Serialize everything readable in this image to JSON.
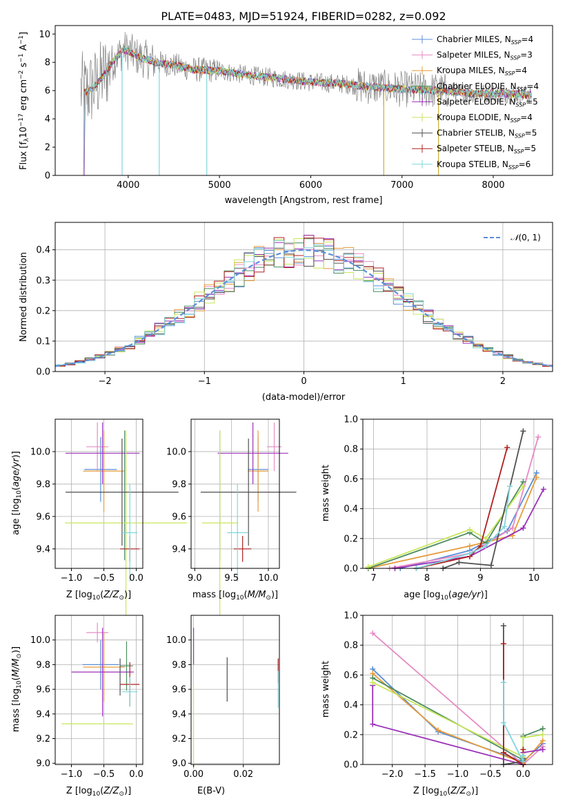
{
  "chart_data": [
    {
      "type": "line",
      "title": "PLATE=0483, MJD=51924, FIBERID=0282, z=0.092",
      "xlabel": "wavelength [Angstrom, rest frame]",
      "ylabel": "Flux [f_λ10^{-17} erg cm^{-2} s^{-1} A^{-1}]",
      "xlim": [
        3200,
        8650
      ],
      "ylim": [
        0,
        10.6
      ],
      "xticks": [
        4000,
        5000,
        6000,
        7000,
        8000
      ],
      "yticks": [
        0,
        2,
        4,
        6,
        8,
        10
      ],
      "grid": false,
      "legend_position": "top-right",
      "series": [
        {
          "name": "Chabrier MILES, N_SSP=4",
          "color": "#5b8ed8"
        },
        {
          "name": "Salpeter MILES, N_SSP=3",
          "color": "#e78ac3"
        },
        {
          "name": "Kroupa MILES, N_SSP=4",
          "color": "#e69b3a"
        },
        {
          "name": "Chabrier ELODIE, N_SSP=4",
          "color": "#4c8c5e"
        },
        {
          "name": "Salpeter ELODIE, N_SSP=5",
          "color": "#9b30b8"
        },
        {
          "name": "Kroupa ELODIE, N_SSP=4",
          "color": "#c8e65a"
        },
        {
          "name": "Chabrier STELIB, N_SSP=5",
          "color": "#505050"
        },
        {
          "name": "Salpeter STELIB, N_SSP=5",
          "color": "#b01f1f"
        },
        {
          "name": "Kroupa STELIB, N_SSP=6",
          "color": "#7fd6dc"
        }
      ],
      "continuum": {
        "x": [
          3500,
          3550,
          3650,
          3750,
          3850,
          3950,
          4000,
          4100,
          4200,
          4300,
          4500,
          4700,
          5000,
          5300,
          5600,
          6000,
          6300,
          6600,
          7000,
          7400,
          7800,
          8100,
          8400
        ],
        "y": [
          6.0,
          5.9,
          6.4,
          7.3,
          8.2,
          8.9,
          8.8,
          8.4,
          8.2,
          8.0,
          7.8,
          7.5,
          7.4,
          7.1,
          6.9,
          6.6,
          6.5,
          6.3,
          6.1,
          6.0,
          5.8,
          5.8,
          5.7
        ]
      },
      "absorption_lines": [
        3933,
        4340,
        4861,
        6800,
        7400
      ]
    },
    {
      "type": "bar",
      "title": "",
      "xlabel": "(data-model)/error",
      "ylabel": "Normed distribution",
      "xlim": [
        -2.5,
        2.5
      ],
      "ylim": [
        0,
        0.49
      ],
      "xticks": [
        -2,
        -1,
        0,
        1,
        2
      ],
      "yticks": [
        0.0,
        0.1,
        0.2,
        0.3,
        0.4
      ],
      "grid": true,
      "legend_position": "top-right",
      "legend": "N(0,1)",
      "curve_color": "#5b8ed8",
      "bin_width": 0.1
    },
    {
      "type": "scatter",
      "xlabel": "Z [log10(Z/Z⊙)]",
      "ylabel": "age  [log10(age/yr)]",
      "xlim": [
        -1.25,
        0.1
      ],
      "ylim": [
        9.28,
        10.2
      ],
      "xticks": [
        -1.0,
        -0.5,
        0.0
      ],
      "yticks": [
        9.4,
        9.6,
        9.8,
        10.0
      ],
      "grid": true,
      "points": [
        {
          "series": "Chabrier MILES",
          "x": -0.55,
          "xerr": 0.25,
          "y": 9.89,
          "yerr": 0.2
        },
        {
          "series": "Salpeter MILES",
          "x": -0.6,
          "xerr": 0.17,
          "y": 10.03,
          "yerr": 0.15
        },
        {
          "series": "Kroupa MILES",
          "x": -0.5,
          "xerr": 0.32,
          "y": 9.88,
          "yerr": 0.25
        },
        {
          "series": "Chabrier ELODIE",
          "x": -0.18,
          "xerr": 0.0,
          "y": 9.73,
          "yerr": 0.4
        },
        {
          "series": "Salpeter ELODIE",
          "x": -0.52,
          "xerr": 0.57,
          "y": 9.99,
          "yerr": 0.19
        },
        {
          "series": "Kroupa ELODIE",
          "x": -0.16,
          "xerr": 0.94,
          "y": 9.56,
          "yerr": 0.57
        },
        {
          "series": "Chabrier STELIB",
          "x": -0.22,
          "xerr": 0.87,
          "y": 9.75,
          "yerr": 0.33
        },
        {
          "series": "Salpeter STELIB",
          "x": -0.1,
          "xerr": 0.15,
          "y": 9.4,
          "yerr": 0.08
        },
        {
          "series": "Kroupa STELIB",
          "x": -0.1,
          "xerr": 0.12,
          "y": 9.5,
          "yerr": 0.3
        }
      ]
    },
    {
      "type": "scatter",
      "xlabel": "mass [log10(M/M⊙)]",
      "ylabel": "",
      "xlim": [
        8.95,
        10.15
      ],
      "ylim": [
        9.28,
        10.2
      ],
      "xticks": [
        9.0,
        9.5,
        10.0
      ],
      "yticks": [
        9.4,
        9.6,
        9.8,
        10.0
      ],
      "grid": true,
      "points": [
        {
          "series": "Chabrier MILES",
          "x": 9.86,
          "xerr": 0.14,
          "y": 9.89,
          "yerr": 0.2
        },
        {
          "series": "Salpeter MILES",
          "x": 10.08,
          "xerr": 0.1,
          "y": 10.03,
          "yerr": 0.15
        },
        {
          "series": "Kroupa MILES",
          "x": 9.86,
          "xerr": 0.14,
          "y": 9.88,
          "yerr": 0.25
        },
        {
          "series": "Chabrier ELODIE",
          "x": 9.34,
          "xerr": 0.0,
          "y": 9.73,
          "yerr": 0.4
        },
        {
          "series": "Salpeter ELODIE",
          "x": 9.79,
          "xerr": 0.48,
          "y": 9.99,
          "yerr": 0.19
        },
        {
          "series": "Kroupa ELODIE",
          "x": 9.34,
          "xerr": 0.24,
          "y": 9.56,
          "yerr": 0.57
        },
        {
          "series": "Chabrier STELIB",
          "x": 9.73,
          "xerr": 0.65,
          "y": 9.75,
          "yerr": 0.33
        },
        {
          "series": "Salpeter STELIB",
          "x": 9.65,
          "xerr": 0.12,
          "y": 9.4,
          "yerr": 0.08
        },
        {
          "series": "Kroupa STELIB",
          "x": 9.58,
          "xerr": 0.14,
          "y": 9.5,
          "yerr": 0.3
        }
      ]
    },
    {
      "type": "line",
      "xlabel": "age  [log10(age/yr)]",
      "ylabel": "mass weight",
      "xlim": [
        6.8,
        10.35
      ],
      "ylim": [
        0,
        1.0
      ],
      "xticks": [
        7,
        8,
        9,
        10
      ],
      "yticks": [
        0.0,
        0.2,
        0.4,
        0.6,
        0.8,
        1.0
      ],
      "grid": true,
      "series": [
        {
          "name": "Chabrier MILES",
          "points": [
            [
              7.5,
              0.0
            ],
            [
              8.8,
              0.12
            ],
            [
              9.5,
              0.25
            ],
            [
              10.05,
              0.64
            ]
          ]
        },
        {
          "name": "Salpeter MILES",
          "points": [
            [
              7.3,
              0.0
            ],
            [
              8.8,
              0.1
            ],
            [
              9.6,
              0.27
            ],
            [
              10.08,
              0.88
            ]
          ]
        },
        {
          "name": "Kroupa MILES",
          "points": [
            [
              6.9,
              0.0
            ],
            [
              8.8,
              0.15
            ],
            [
              9.6,
              0.22
            ],
            [
              10.05,
              0.61
            ]
          ]
        },
        {
          "name": "Chabrier ELODIE",
          "points": [
            [
              6.9,
              0.0
            ],
            [
              8.8,
              0.24
            ],
            [
              9.1,
              0.17
            ],
            [
              9.8,
              0.58
            ]
          ]
        },
        {
          "name": "Salpeter ELODIE",
          "points": [
            [
              7.4,
              0.0
            ],
            [
              8.8,
              0.08
            ],
            [
              9.8,
              0.27
            ],
            [
              10.18,
              0.53
            ]
          ]
        },
        {
          "name": "Kroupa ELODIE",
          "points": [
            [
              6.9,
              0.01
            ],
            [
              8.8,
              0.26
            ],
            [
              9.1,
              0.2
            ],
            [
              9.8,
              0.55
            ]
          ]
        },
        {
          "name": "Chabrier STELIB",
          "points": [
            [
              8.3,
              0.0
            ],
            [
              8.6,
              0.04
            ],
            [
              9.2,
              0.02
            ],
            [
              9.8,
              0.92
            ]
          ]
        },
        {
          "name": "Salpeter STELIB",
          "points": [
            [
              7.8,
              0.0
            ],
            [
              8.8,
              0.08
            ],
            [
              9.0,
              0.15
            ],
            [
              9.5,
              0.81
            ]
          ]
        },
        {
          "name": "Kroupa STELIB",
          "points": [
            [
              7.8,
              0.0
            ],
            [
              8.8,
              0.1
            ],
            [
              9.1,
              0.15
            ],
            [
              9.45,
              0.28
            ],
            [
              9.55,
              0.55
            ]
          ]
        }
      ]
    },
    {
      "type": "scatter",
      "xlabel": "Z [log10(Z/Z⊙)]",
      "ylabel": "mass [log10(M/M⊙)]",
      "xlim": [
        -1.25,
        0.1
      ],
      "ylim": [
        8.99,
        10.2
      ],
      "xticks": [
        -1.0,
        -0.5,
        0.0
      ],
      "yticks": [
        9.0,
        9.2,
        9.4,
        9.6,
        9.8,
        10.0
      ],
      "grid": true,
      "points": [
        {
          "series": "Chabrier MILES",
          "x": -0.55,
          "xerr": 0.28,
          "y": 9.8,
          "yerr": 0.2
        },
        {
          "series": "Salpeter MILES",
          "x": -0.6,
          "xerr": 0.17,
          "y": 10.06,
          "yerr": 0.08
        },
        {
          "series": "Kroupa MILES",
          "x": -0.5,
          "xerr": 0.32,
          "y": 9.78,
          "yerr": 0.28
        },
        {
          "series": "Chabrier ELODIE",
          "x": -0.15,
          "xerr": 0.1,
          "y": 9.79,
          "yerr": 0.2
        },
        {
          "series": "Salpeter ELODIE",
          "x": -0.52,
          "xerr": 0.48,
          "y": 9.74,
          "yerr": 0.36
        },
        {
          "series": "Kroupa ELODIE",
          "x": -0.6,
          "xerr": 0.55,
          "y": 9.32,
          "yerr": 0.0
        },
        {
          "series": "Chabrier STELIB",
          "x": -0.25,
          "xerr": 0.0,
          "y": 9.7,
          "yerr": 0.15
        },
        {
          "series": "Salpeter STELIB",
          "x": -0.1,
          "xerr": 0.15,
          "y": 9.64,
          "yerr": 0.18
        },
        {
          "series": "Kroupa STELIB",
          "x": -0.1,
          "xerr": 0.12,
          "y": 9.58,
          "yerr": 0.12
        }
      ]
    },
    {
      "type": "scatter",
      "xlabel": "E(B-V)",
      "ylabel": "",
      "xlim": [
        -0.001,
        0.0345
      ],
      "ylim": [
        8.99,
        10.2
      ],
      "xticks": [
        0.0,
        0.02
      ],
      "yticks": [
        9.0,
        9.2,
        9.4,
        9.6,
        9.8,
        10.0
      ],
      "grid": true,
      "points": [
        {
          "series": "Salpeter ELODIE",
          "x": 0.0,
          "y": 9.95,
          "yerr": 0.15
        },
        {
          "series": "Kroupa ELODIE",
          "x": 0.0,
          "y": 9.3,
          "yerr": 0.35
        },
        {
          "series": "Chabrier STELIB",
          "x": 0.0135,
          "y": 9.68,
          "yerr": 0.18
        },
        {
          "series": "Salpeter STELIB",
          "x": 0.034,
          "y": 9.75,
          "yerr": 0.1
        },
        {
          "series": "Kroupa STELIB",
          "x": 0.034,
          "y": 9.6,
          "yerr": 0.15
        }
      ]
    },
    {
      "type": "line",
      "xlabel": "Z [log10(Z/Z⊙)]",
      "ylabel": "mass weight",
      "xlim": [
        -2.45,
        0.45
      ],
      "ylim": [
        0,
        1.0
      ],
      "xticks": [
        -2.0,
        -1.5,
        -1.0,
        -0.5,
        0.0
      ],
      "yticks": [
        0.0,
        0.2,
        0.4,
        0.6,
        0.8,
        1.0
      ],
      "grid": true,
      "series": [
        {
          "name": "Chabrier MILES",
          "points": [
            [
              -2.3,
              0.64
            ],
            [
              -1.3,
              0.22
            ],
            [
              0.0,
              0.02
            ],
            [
              0.3,
              0.14
            ]
          ]
        },
        {
          "name": "Salpeter MILES",
          "points": [
            [
              -2.3,
              0.88
            ],
            [
              0.0,
              0.0
            ],
            [
              0.3,
              0.12
            ]
          ]
        },
        {
          "name": "Kroupa MILES",
          "points": [
            [
              -2.3,
              0.61
            ],
            [
              -1.3,
              0.23
            ],
            [
              0.0,
              0.01
            ],
            [
              0.3,
              0.16
            ]
          ]
        },
        {
          "name": "Chabrier ELODIE",
          "points": [
            [
              -2.3,
              0.58
            ],
            [
              0.0,
              0.03
            ],
            [
              0.0,
              0.19
            ],
            [
              0.3,
              0.24
            ]
          ]
        },
        {
          "name": "Salpeter ELODIE",
          "points": [
            [
              -2.3,
              0.53
            ],
            [
              -2.3,
              0.27
            ],
            [
              0.0,
              0.0
            ],
            [
              0.0,
              0.08
            ],
            [
              0.3,
              0.1
            ]
          ]
        },
        {
          "name": "Kroupa ELODIE",
          "points": [
            [
              -2.3,
              0.55
            ],
            [
              0.0,
              0.05
            ],
            [
              0.0,
              0.18
            ],
            [
              0.3,
              0.2
            ]
          ]
        },
        {
          "name": "Chabrier STELIB",
          "points": [
            [
              -0.3,
              0.93
            ],
            [
              -0.3,
              0.0
            ],
            [
              0.0,
              0.02
            ],
            [
              0.0,
              0.04
            ]
          ]
        },
        {
          "name": "Salpeter STELIB",
          "points": [
            [
              -0.3,
              0.81
            ],
            [
              -0.3,
              0.08
            ],
            [
              0.0,
              0.0
            ],
            [
              0.0,
              0.1
            ]
          ]
        },
        {
          "name": "Kroupa STELIB",
          "points": [
            [
              -0.3,
              0.55
            ],
            [
              -0.3,
              0.28
            ],
            [
              0.0,
              0.02
            ],
            [
              0.0,
              0.06
            ]
          ]
        }
      ]
    }
  ]
}
